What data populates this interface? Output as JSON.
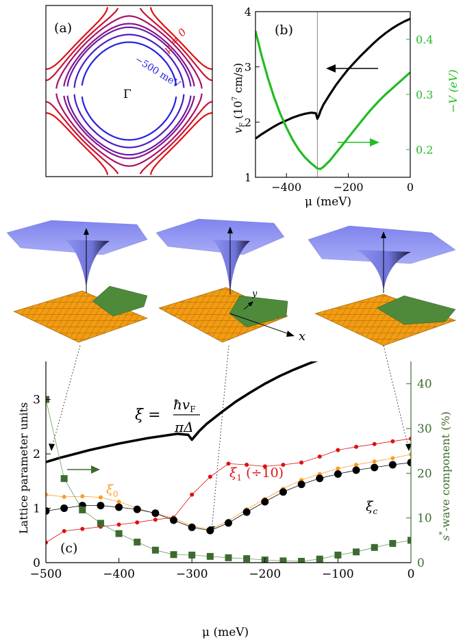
{
  "colors": {
    "black": "#000000",
    "red": "#dd1111",
    "green": "#22bb22",
    "orange": "#ff9922",
    "darkgreen": "#3d6b2f",
    "blue": "#2222dd",
    "purple": "#6a1aa8",
    "surface_blue": "#8f93f0",
    "surface_orange": "#f39c12",
    "surface_green": "#4f8a3a"
  },
  "panel_a": {
    "label": "(a)",
    "gamma_label": "Γ",
    "mu_label": "μ = 0",
    "mev_label": "−500 meV",
    "contour_colors": [
      "#dd1111",
      "#cc1133",
      "#aa1166",
      "#8a1488",
      "#6a1aa8",
      "#4a1ec4",
      "#2222dd"
    ]
  },
  "chart_data": [
    {
      "type": "line",
      "panel": "(b)",
      "label": "(b)",
      "xlabel": "μ (meV)",
      "ylabel_left": "vF (10^7 cm/s)",
      "ylabel_left_main": "v",
      "ylabel_left_sub": "F",
      "ylabel_left_unit": "(10",
      "ylabel_left_exp": "7",
      "ylabel_left_unit2": "cm/s)",
      "ylabel_right": "−V (eV)",
      "xlim": [
        -500,
        0
      ],
      "ylim_left": [
        1,
        4
      ],
      "ylim_right": [
        0.15,
        0.45
      ],
      "xticks": [
        -400,
        -200,
        0
      ],
      "xtick_labels": [
        "−400",
        "−200",
        "0"
      ],
      "yticks_left": [
        1,
        2,
        3,
        4
      ],
      "yticks_right": [
        0.2,
        0.3,
        0.4
      ],
      "ytick_labels_right": [
        "0.2",
        "0.3",
        "0.4"
      ],
      "vertical_line_x": -300,
      "series": [
        {
          "axis": "left",
          "color": "#000000",
          "x": [
            -500,
            -480,
            -460,
            -440,
            -420,
            -400,
            -380,
            -360,
            -340,
            -320,
            -305,
            -300,
            -295,
            -290,
            -280,
            -260,
            -240,
            -220,
            -200,
            -180,
            -160,
            -140,
            -120,
            -100,
            -80,
            -60,
            -40,
            -20,
            0
          ],
          "y": [
            1.7,
            1.78,
            1.85,
            1.92,
            1.98,
            2.03,
            2.08,
            2.12,
            2.15,
            2.17,
            2.16,
            2.06,
            2.12,
            2.2,
            2.32,
            2.5,
            2.67,
            2.82,
            2.96,
            3.08,
            3.2,
            3.31,
            3.42,
            3.52,
            3.61,
            3.69,
            3.76,
            3.82,
            3.87
          ]
        },
        {
          "axis": "right",
          "color": "#22bb22",
          "x": [
            -500,
            -480,
            -460,
            -440,
            -420,
            -400,
            -380,
            -360,
            -340,
            -320,
            -300,
            -290,
            -280,
            -260,
            -240,
            -220,
            -200,
            -180,
            -160,
            -140,
            -120,
            -100,
            -80,
            -60,
            -40,
            -20,
            0
          ],
          "y": [
            0.415,
            0.37,
            0.33,
            0.295,
            0.265,
            0.24,
            0.218,
            0.2,
            0.186,
            0.175,
            0.166,
            0.165,
            0.169,
            0.18,
            0.194,
            0.208,
            0.222,
            0.236,
            0.25,
            0.264,
            0.277,
            0.289,
            0.3,
            0.31,
            0.32,
            0.33,
            0.34
          ]
        }
      ]
    },
    {
      "type": "line",
      "panel": "(c)",
      "label": "(c)",
      "xlabel": "μ (meV)",
      "ylabel_left": "Lattice parameter units",
      "ylabel_right": "s*-wave component (%)",
      "ylabel_right_main": "s",
      "ylabel_right_star": "*",
      "ylabel_right_rest": "-wave component (%)",
      "xlim": [
        -500,
        0
      ],
      "ylim_left": [
        0,
        3.7
      ],
      "ylim_right": [
        0,
        45
      ],
      "xticks": [
        -500,
        -400,
        -300,
        -200,
        -100,
        0
      ],
      "xtick_labels": [
        "−500",
        "−400",
        "−300",
        "−200",
        "−100",
        "0"
      ],
      "yticks_left": [
        0,
        1,
        2,
        3
      ],
      "yticks_right": [
        0,
        10,
        20,
        30,
        40
      ],
      "xi_formula": {
        "lhs": "ξ =",
        "num_hbar": "ħ",
        "num_v": "v",
        "num_sub": "F",
        "den": "πΔ"
      },
      "label_xi1": "ξ",
      "label_xi1_sub": "1",
      "label_xi1_suffix": "(÷10)",
      "label_xi0": "ξ",
      "label_xi0_sub": "0",
      "label_xic": "ξ",
      "label_xic_sub": "c",
      "series": [
        {
          "name": "ξ = ħvF/πΔ",
          "axis": "left",
          "color": "#000000",
          "x": [
            -500,
            -480,
            -460,
            -440,
            -420,
            -400,
            -380,
            -360,
            -340,
            -320,
            -305,
            -300,
            -295,
            -290,
            -280,
            -260,
            -240,
            -220,
            -200,
            -180,
            -160,
            -140,
            -120,
            -100,
            -90
          ],
          "y": [
            1.85,
            1.93,
            2.0,
            2.07,
            2.13,
            2.19,
            2.24,
            2.29,
            2.33,
            2.37,
            2.35,
            2.26,
            2.34,
            2.42,
            2.55,
            2.76,
            2.96,
            3.13,
            3.29,
            3.43,
            3.55,
            3.66,
            3.76,
            3.85,
            3.9
          ]
        },
        {
          "name": "ξ1 (÷10)",
          "axis": "left",
          "color": "#dd1111",
          "x": [
            -500,
            -475,
            -450,
            -425,
            -400,
            -375,
            -350,
            -325,
            -300,
            -275,
            -250,
            -225,
            -200,
            -175,
            -150,
            -125,
            -100,
            -75,
            -50,
            -25,
            0
          ],
          "y": [
            0.37,
            0.58,
            0.62,
            0.66,
            0.7,
            0.74,
            0.79,
            0.83,
            1.25,
            1.58,
            1.82,
            1.8,
            1.77,
            1.8,
            1.84,
            1.95,
            2.07,
            2.13,
            2.18,
            2.23,
            2.28
          ]
        },
        {
          "name": "ξ0",
          "axis": "left",
          "color": "#ff9922",
          "x": [
            -500,
            -475,
            -450,
            -425,
            -400,
            -375,
            -350,
            -325,
            -300,
            -275,
            -250,
            -225,
            -200,
            -175,
            -150,
            -125,
            -100,
            -75,
            -50,
            -25,
            0
          ],
          "y": [
            1.25,
            1.21,
            1.22,
            1.2,
            1.12,
            1.0,
            0.9,
            0.82,
            0.67,
            0.61,
            0.77,
            0.98,
            1.17,
            1.36,
            1.52,
            1.63,
            1.73,
            1.8,
            1.86,
            1.92,
            1.99
          ]
        },
        {
          "name": "ξc",
          "axis": "left",
          "color": "#000000",
          "x": [
            -500,
            -475,
            -450,
            -425,
            -400,
            -375,
            -350,
            -325,
            -300,
            -275,
            -250,
            -225,
            -200,
            -175,
            -150,
            -125,
            -100,
            -75,
            -50,
            -25,
            0
          ],
          "y": [
            0.95,
            1.0,
            1.05,
            1.05,
            1.02,
            0.98,
            0.91,
            0.78,
            0.65,
            0.59,
            0.73,
            0.93,
            1.12,
            1.3,
            1.44,
            1.55,
            1.63,
            1.7,
            1.75,
            1.8,
            1.84
          ]
        },
        {
          "name": "s*-wave component",
          "axis": "right",
          "color": "#3d6b2f",
          "x": [
            -500,
            -475,
            -450,
            -425,
            -400,
            -375,
            -350,
            -325,
            -300,
            -275,
            -250,
            -225,
            -200,
            -175,
            -150,
            -125,
            -100,
            -75,
            -50,
            -25,
            0
          ],
          "y": [
            36.5,
            18.8,
            11.8,
            8.8,
            6.5,
            4.6,
            2.8,
            1.8,
            1.7,
            1.4,
            1.1,
            0.9,
            0.6,
            0.4,
            0.3,
            0.8,
            1.7,
            2.4,
            3.4,
            4.3,
            5.0
          ]
        }
      ]
    }
  ],
  "surfaces": {
    "axis_x": "x",
    "axis_y": "y"
  }
}
